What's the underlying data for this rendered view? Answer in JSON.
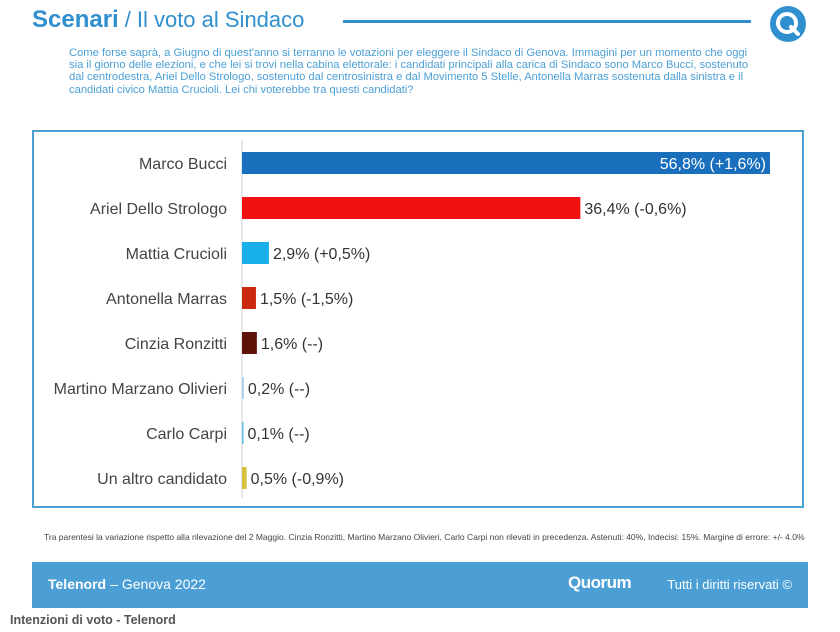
{
  "header": {
    "title_bold": "Scenari",
    "separator": "/",
    "title_rest": "Il voto al Sindaco",
    "logo_icon": "quorum-q-logo-icon"
  },
  "question": "Come forse saprà, a Giugno di quest'anno si terranno le votazioni per eleggere il Sindaco di Genova. Immagini per un momento che oggi sia il giorno delle elezioni, e che lei si trovi nella cabina elettorale: i candidati principali alla carica di Sindaco sono Marco Bucci, sostenuto dal centrodestra, Ariel Dello Strologo, sostenuto dal centrosinistra e dal Movimento 5 Stelle, Antonella Marras sostenuta dalla sinistra e il candidati civico Mattia Crucioli. Lei chi voterebbe tra questi candidati?",
  "chart_data": {
    "type": "bar",
    "orientation": "horizontal",
    "categories": [
      "Marco Bucci",
      "Ariel Dello Strologo",
      "Mattia Crucioli",
      "Antonella Marras",
      "Cinzia Ronzitti",
      "Martino Marzano Olivieri",
      "Carlo Carpi",
      "Un altro candidato"
    ],
    "values": [
      56.8,
      36.4,
      2.9,
      1.5,
      1.6,
      0.2,
      0.1,
      0.5
    ],
    "labels": [
      "56,8% (+1,6%)",
      "36,4% (-0,6%)",
      "2,9% (+0,5%)",
      "1,5% (-1,5%)",
      "1,6% (--)",
      "0,2% (--)",
      "0,1% (--)",
      "0,5% (-0,9%)"
    ],
    "colors": [
      "#1a6fbd",
      "#f01212",
      "#1ab0ea",
      "#cc2a10",
      "#5e1208",
      "#a9cff0",
      "#62b9e0",
      "#d6c23a"
    ],
    "label_inside": [
      true,
      false,
      false,
      false,
      false,
      false,
      false,
      false
    ],
    "xlim": [
      0,
      56.8
    ],
    "grid": false
  },
  "footnote": "Tra parentesi la variazione rispetto alla rilevazione del 2 Maggio. Cinzia Ronzitti, Martino Marzano Olivieri, Carlo Carpi non rilevati in precedenza. Astenuti: 40%, Indecisi: 15%. Margine di errore: +/- 4.0%",
  "footer": {
    "brand": "Telenord",
    "dash": "–",
    "subtitle": "Genova 2022",
    "logo_text": "Quorum",
    "rights": "Tutti i diritti riservati ©",
    "background": "#4b9fd5"
  },
  "caption": "Intenzioni di voto - Telenord"
}
